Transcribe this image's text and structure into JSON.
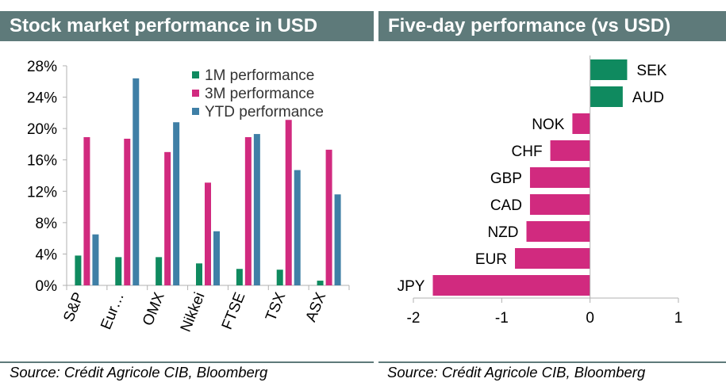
{
  "left_panel": {
    "title": "Stock market performance in USD",
    "source": "Source: Crédit Agricole CIB, Bloomberg"
  },
  "right_panel": {
    "title": "Five-day performance (vs USD)",
    "source": "Source: Crédit Agricole CIB, Bloomberg"
  },
  "colors": {
    "header_bg": "#5e7a7a",
    "green": "#0f8a5f",
    "magenta": "#d12a7f",
    "blue": "#3f7fa6"
  },
  "chart_data": [
    {
      "type": "bar",
      "categories": [
        "S&P",
        "Eur…",
        "OMX",
        "Nikkei",
        "FTSE",
        "TSX",
        "ASX"
      ],
      "series": [
        {
          "name": "1M performance",
          "color": "#0f8a5f",
          "values": [
            3.8,
            3.6,
            3.6,
            2.8,
            2.1,
            2.0,
            0.6
          ]
        },
        {
          "name": "3M performance",
          "color": "#d12a7f",
          "values": [
            18.9,
            18.7,
            17.0,
            13.1,
            18.9,
            21.1,
            17.3
          ]
        },
        {
          "name": "YTD performance",
          "color": "#3f7fa6",
          "values": [
            6.5,
            26.4,
            20.8,
            6.9,
            19.3,
            14.7,
            11.6
          ]
        }
      ],
      "ylim": [
        0,
        28
      ],
      "yticks": [
        "0%",
        "4%",
        "8%",
        "12%",
        "16%",
        "20%",
        "24%",
        "28%"
      ],
      "ytick_values": [
        0,
        4,
        8,
        12,
        16,
        20,
        24,
        28
      ],
      "legend_position": "top-right",
      "grid": false
    },
    {
      "type": "bar",
      "orientation": "horizontal",
      "categories": [
        "SEK",
        "AUD",
        "NOK",
        "CHF",
        "GBP",
        "CAD",
        "NZD",
        "EUR",
        "JPY"
      ],
      "values": [
        0.42,
        0.37,
        -0.2,
        -0.45,
        -0.68,
        -0.68,
        -0.72,
        -0.85,
        -1.78
      ],
      "xlim": [
        -2,
        1
      ],
      "xticks": [
        "-2",
        "-1",
        "0",
        "1"
      ],
      "xtick_values": [
        -2,
        -1,
        0,
        1
      ],
      "positive_color": "#0f8a5f",
      "negative_color": "#d12a7f",
      "grid": false
    }
  ]
}
